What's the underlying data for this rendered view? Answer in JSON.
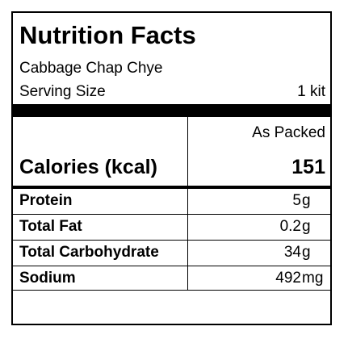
{
  "label": {
    "title": "Nutrition Facts",
    "product_name": "Cabbage Chap Chye",
    "serving_size_label": "Serving Size",
    "serving_size_value": "1 kit",
    "column_header": "As Packed",
    "calories_label": "Calories (kcal)",
    "calories_value": "151",
    "nutrients": [
      {
        "name": "Protein",
        "amount": "5",
        "unit": "g"
      },
      {
        "name": "Total Fat",
        "amount": "0.2",
        "unit": "g"
      },
      {
        "name": "Total Carbohydrate",
        "amount": "34",
        "unit": "g"
      },
      {
        "name": "Sodium",
        "amount": "492",
        "unit": "mg"
      }
    ]
  }
}
